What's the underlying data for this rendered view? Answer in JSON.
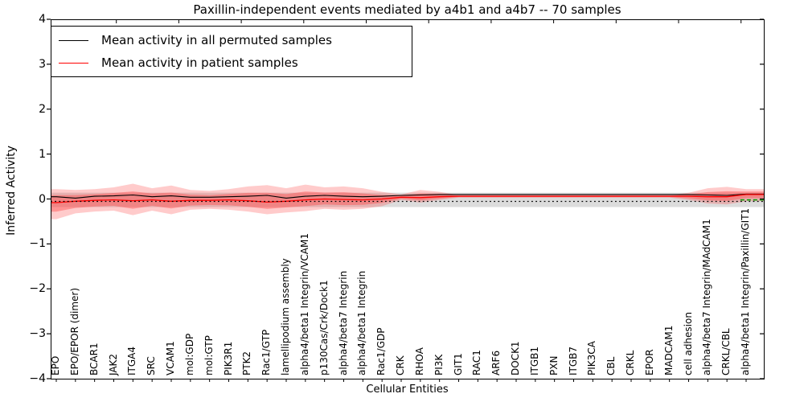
{
  "title": "Paxillin-independent events mediated by a4b1 and a4b7 -- 70 samples",
  "legend": {
    "items": [
      {
        "label": "Mean activity in all permuted samples",
        "color": "#000000"
      },
      {
        "label": "Mean activity in patient samples",
        "color": "#ff0000"
      }
    ]
  },
  "axes": {
    "ylabel": "Inferred Activity",
    "xlabel": "Cellular Entities",
    "ytick_labels": [
      "4",
      "3",
      "2",
      "1",
      "0",
      "−1",
      "−2",
      "−3",
      "−4"
    ],
    "ytick_values": [
      4,
      3,
      2,
      1,
      0,
      -1,
      -2,
      -3,
      -4
    ],
    "ylim": [
      -4,
      4
    ]
  },
  "chart_data": {
    "type": "line",
    "title": "Paxillin-independent events mediated by a4b1 and a4b7 -- 70 samples",
    "xlabel": "Cellular Entities",
    "ylabel": "Inferred Activity",
    "ylim": [
      -4,
      4
    ],
    "grid": false,
    "legend_position": "upper left",
    "categories": [
      "EPO",
      "EPO/EPOR (dimer)",
      "BCAR1",
      "JAK2",
      "ITGA4",
      "SRC",
      "VCAM1",
      "mol:GDP",
      "mol:GTP",
      "PIK3R1",
      "PTK2",
      "Rac1/GTP",
      "lamellipodium assembly",
      "alpha4/beta1 Integrin/VCAM1",
      "p130Cas/Crk/Dock1",
      "alpha4/beta7 Integrin",
      "alpha4/beta1 Integrin",
      "Rac1/GDP",
      "CRK",
      "RHOA",
      "PI3K",
      "GIT1",
      "RAC1",
      "ARF6",
      "DOCK1",
      "ITGB1",
      "PXN",
      "ITGB7",
      "PIK3CA",
      "CBL",
      "CRKL",
      "EPOR",
      "MADCAM1",
      "cell adhesion",
      "alpha4/beta7 Integrin/MAdCAM1",
      "CRKL/CBL",
      "alpha4/beta1 Integrin/Paxillin/GIT1"
    ],
    "series": [
      {
        "name": "Mean activity in all permuted samples",
        "color": "#000000",
        "style": "solid",
        "values": [
          0.05,
          0.02,
          0.06,
          0.07,
          0.09,
          0.05,
          0.07,
          0.04,
          0.04,
          0.05,
          0.06,
          0.08,
          0.02,
          0.06,
          0.08,
          0.06,
          0.05,
          0.06,
          0.08,
          0.09,
          0.1,
          0.1,
          0.1,
          0.1,
          0.1,
          0.1,
          0.1,
          0.1,
          0.1,
          0.1,
          0.1,
          0.1,
          0.1,
          0.1,
          0.09,
          0.08,
          0.11
        ]
      },
      {
        "name": "Mean activity in patient samples",
        "color": "#ff0000",
        "style": "solid",
        "values": [
          -0.08,
          -0.05,
          -0.03,
          -0.02,
          -0.04,
          -0.02,
          -0.05,
          -0.03,
          -0.03,
          -0.02,
          -0.04,
          -0.07,
          -0.05,
          -0.02,
          0.0,
          -0.01,
          -0.02,
          0.0,
          0.04,
          0.03,
          0.05,
          0.06,
          0.06,
          0.06,
          0.06,
          0.06,
          0.06,
          0.06,
          0.06,
          0.06,
          0.06,
          0.06,
          0.06,
          0.06,
          0.05,
          0.05,
          0.1
        ]
      }
    ],
    "bands": {
      "patient_band": {
        "color": "#ff4646",
        "outer_opacity": 0.28,
        "inner_opacity": 0.42,
        "inner_scale": 0.55,
        "upper": [
          0.22,
          0.2,
          0.22,
          0.26,
          0.34,
          0.24,
          0.3,
          0.2,
          0.18,
          0.22,
          0.28,
          0.31,
          0.24,
          0.32,
          0.26,
          0.28,
          0.24,
          0.16,
          0.1,
          0.2,
          0.16,
          0.09,
          0.09,
          0.09,
          0.09,
          0.09,
          0.09,
          0.09,
          0.09,
          0.09,
          0.09,
          0.09,
          0.09,
          0.14,
          0.24,
          0.27,
          0.22
        ],
        "lower": [
          -0.45,
          -0.32,
          -0.28,
          -0.26,
          -0.36,
          -0.26,
          -0.34,
          -0.24,
          -0.22,
          -0.24,
          -0.28,
          -0.34,
          -0.3,
          -0.27,
          -0.22,
          -0.24,
          -0.22,
          -0.16,
          -0.02,
          -0.08,
          -0.02,
          0.03,
          0.03,
          0.03,
          0.03,
          0.03,
          0.03,
          0.03,
          0.03,
          0.03,
          0.03,
          0.03,
          0.03,
          -0.02,
          -0.1,
          -0.12,
          -0.05
        ]
      },
      "permuted_band": {
        "color": "#828282",
        "opacity": 0.28,
        "upper": 0.14,
        "lower": -0.18
      }
    },
    "zero_line": {
      "value": 0,
      "style": "dotted",
      "color": "#000000"
    },
    "green_marker": {
      "color": "#00a000",
      "y": -0.02,
      "x_start_index": 35.7,
      "x_end_index": 37,
      "style": "dashed"
    }
  }
}
